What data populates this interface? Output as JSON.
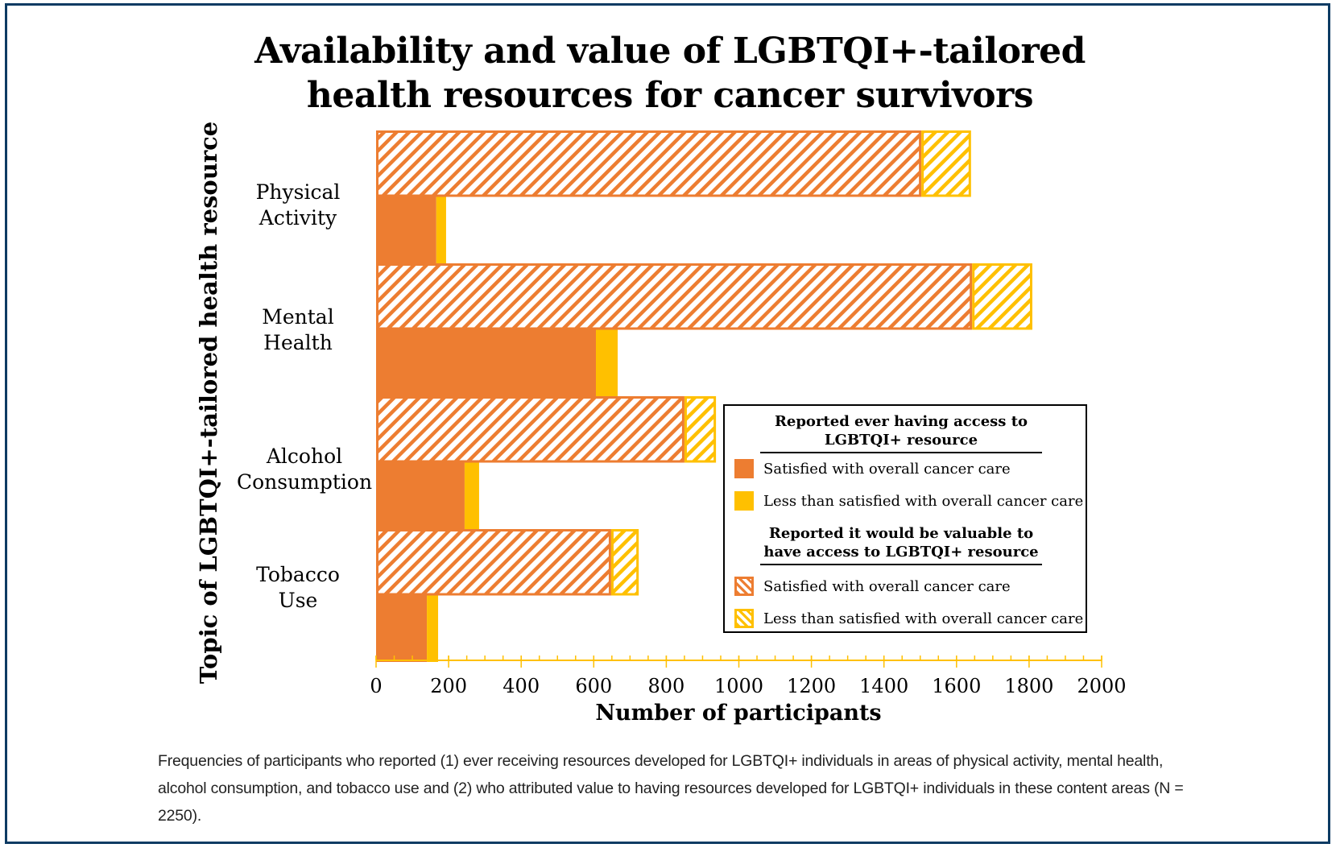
{
  "chart_data": {
    "type": "bar",
    "orientation": "horizontal",
    "stacked": true,
    "title": "Availability and value of LGBTQI+-tailored health resources for cancer survivors",
    "title_lines": [
      "Availability and value of LGBTQI+-tailored",
      "health resources for cancer survivors"
    ],
    "xlabel": "Number of participants",
    "ylabel": "Topic of LGBTQI+-tailored health resource",
    "xlim": [
      0,
      2000
    ],
    "x_ticks": [
      0,
      200,
      400,
      600,
      800,
      1000,
      1200,
      1400,
      1600,
      1800,
      2000
    ],
    "x_minor_step": 50,
    "grid": false,
    "categories": [
      {
        "lines": [
          "Physical",
          "Activity"
        ],
        "label": "Physical Activity"
      },
      {
        "lines": [
          "Mental",
          "Health"
        ],
        "label": "Mental Health"
      },
      {
        "lines": [
          "Alcohol",
          "Consumption"
        ],
        "label": "Alcohol Consumption"
      },
      {
        "lines": [
          "Tobacco",
          "Use"
        ],
        "label": "Tobacco Use"
      }
    ],
    "groups": [
      {
        "name": "Reported it would be valuable to have access to LGBTQI+ resource",
        "pattern": "hatched",
        "series": [
          {
            "name": "Satisfied with overall cancer care",
            "color": "#ed7d31",
            "values": [
              1503,
              1643,
              850,
              648
            ]
          },
          {
            "name": "Less than satisfied with overall cancer care",
            "color": "#ffc000",
            "values": [
              137,
              166,
              87,
              76
            ]
          }
        ]
      },
      {
        "name": "Reported ever having access to LGBTQI+ resource",
        "pattern": "solid",
        "series": [
          {
            "name": "Satisfied with overall cancer care",
            "color": "#ed7d31",
            "values": [
              166,
              606,
              244,
              140
            ]
          },
          {
            "name": "Less than satisfied with overall cancer care",
            "color": "#ffc000",
            "values": [
              27,
              60,
              40,
              31
            ]
          }
        ]
      }
    ],
    "legend": {
      "placement": "lower-right",
      "sections": [
        {
          "heading_lines": [
            "Reported ever having access to",
            "LGBTQI+ resource"
          ],
          "items": [
            {
              "label": "Satisfied with overall cancer care",
              "swatch": "solid-orange"
            },
            {
              "label": "Less than satisfied with overall cancer care",
              "swatch": "solid-yellow"
            }
          ]
        },
        {
          "heading_lines": [
            "Reported it would be valuable to",
            "have access to LGBTQI+ resource"
          ],
          "items": [
            {
              "label": "Satisfied with overall cancer care",
              "swatch": "hatch-orange"
            },
            {
              "label": "Less than satisfied with overall cancer care",
              "swatch": "hatch-yellow"
            }
          ]
        }
      ]
    }
  },
  "colors": {
    "satisfied": "#ed7d31",
    "less_satisfied": "#ffc000",
    "axis": "#ffc000",
    "frame": "#0d3b63"
  },
  "caption": "Frequencies of participants who reported (1) ever receiving resources developed for LGBTQI+ individuals in areas of physical activity, mental health, alcohol consumption, and tobacco use and (2) who attributed value to having resources developed for LGBTQI+ individuals in these content areas (N = 2250)."
}
